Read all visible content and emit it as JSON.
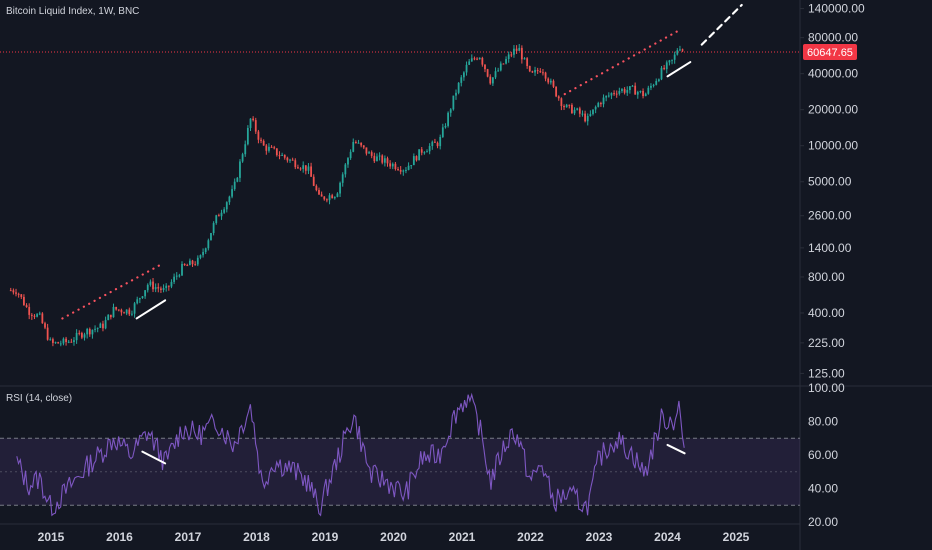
{
  "chart_data": [
    {
      "type": "candlestick",
      "title": "Bitcoin Liquid Index, 1W, BNC",
      "yscale": "log",
      "ylim": [
        100,
        150000
      ],
      "y_ticks": [
        "140000.00",
        "80000.00",
        "40000.00",
        "20000.00",
        "10000.00",
        "5000.00",
        "2600.00",
        "1400.00",
        "800.00",
        "400.00",
        "225.00",
        "125.00"
      ],
      "last_price": "60647.65",
      "last_price_color": "#f23645",
      "up_color": "#26a69a",
      "down_color": "#ef5350",
      "x_ticks": [
        "2015",
        "2016",
        "2017",
        "2018",
        "2019",
        "2020",
        "2021",
        "2022",
        "2023",
        "2024",
        "2025"
      ],
      "series": [
        {
          "date": "2014-07",
          "close": 620
        },
        {
          "date": "2014-09",
          "close": 420
        },
        {
          "date": "2014-11",
          "close": 370
        },
        {
          "date": "2015-01",
          "close": 220
        },
        {
          "date": "2015-04",
          "close": 230
        },
        {
          "date": "2015-07",
          "close": 280
        },
        {
          "date": "2015-10",
          "close": 310
        },
        {
          "date": "2015-12",
          "close": 430
        },
        {
          "date": "2016-03",
          "close": 415
        },
        {
          "date": "2016-06",
          "close": 700
        },
        {
          "date": "2016-09",
          "close": 610
        },
        {
          "date": "2016-12",
          "close": 960
        },
        {
          "date": "2017-03",
          "close": 1100
        },
        {
          "date": "2017-06",
          "close": 2500
        },
        {
          "date": "2017-09",
          "close": 4300
        },
        {
          "date": "2017-12",
          "close": 17000
        },
        {
          "date": "2018-02",
          "close": 10000
        },
        {
          "date": "2018-04",
          "close": 9000
        },
        {
          "date": "2018-07",
          "close": 7500
        },
        {
          "date": "2018-10",
          "close": 6400
        },
        {
          "date": "2018-12",
          "close": 3600
        },
        {
          "date": "2019-03",
          "close": 4000
        },
        {
          "date": "2019-06",
          "close": 11000
        },
        {
          "date": "2019-09",
          "close": 8300
        },
        {
          "date": "2019-12",
          "close": 7200
        },
        {
          "date": "2020-03",
          "close": 6400
        },
        {
          "date": "2020-06",
          "close": 9200
        },
        {
          "date": "2020-09",
          "close": 10700
        },
        {
          "date": "2020-12",
          "close": 29000
        },
        {
          "date": "2021-02",
          "close": 48000
        },
        {
          "date": "2021-04",
          "close": 58000
        },
        {
          "date": "2021-06",
          "close": 35000
        },
        {
          "date": "2021-08",
          "close": 47000
        },
        {
          "date": "2021-10",
          "close": 62000
        },
        {
          "date": "2021-11",
          "close": 64000
        },
        {
          "date": "2022-01",
          "close": 38000
        },
        {
          "date": "2022-03",
          "close": 45000
        },
        {
          "date": "2022-05",
          "close": 30000
        },
        {
          "date": "2022-07",
          "close": 21000
        },
        {
          "date": "2022-09",
          "close": 19500
        },
        {
          "date": "2022-11",
          "close": 16500
        },
        {
          "date": "2023-01",
          "close": 23000
        },
        {
          "date": "2023-04",
          "close": 29000
        },
        {
          "date": "2023-07",
          "close": 29500
        },
        {
          "date": "2023-09",
          "close": 26500
        },
        {
          "date": "2023-12",
          "close": 42000
        },
        {
          "date": "2024-02",
          "close": 52000
        },
        {
          "date": "2024-03",
          "close": 70000
        },
        {
          "date": "2024-04",
          "close": 60647
        }
      ],
      "price_line": 60647.65,
      "trendlines": [
        {
          "style": "dotted",
          "color": "#f7525f",
          "from": {
            "date": "2015-03",
            "price": 360
          },
          "to": {
            "date": "2016-08",
            "price": 1000
          }
        },
        {
          "style": "solid",
          "color": "#ffffff",
          "from": {
            "date": "2016-04",
            "price": 360
          },
          "to": {
            "date": "2016-09",
            "price": 510
          }
        },
        {
          "style": "dotted",
          "color": "#f7525f",
          "from": {
            "date": "2022-07",
            "price": 27000
          },
          "to": {
            "date": "2024-03",
            "price": 92000
          }
        },
        {
          "style": "solid",
          "color": "#ffffff",
          "from": {
            "date": "2024-01",
            "price": 38000
          },
          "to": {
            "date": "2024-05",
            "price": 50000
          }
        },
        {
          "style": "dashed",
          "color": "#ffffff",
          "from": {
            "date": "2024-07",
            "price": 70000
          },
          "to": {
            "date": "2025-02",
            "price": 150000
          }
        }
      ]
    },
    {
      "type": "line",
      "title": "RSI (14, close)",
      "line_color": "#7e57c2",
      "band": [
        30,
        70
      ],
      "ylim": [
        20,
        100
      ],
      "y_ticks": [
        "100.00",
        "80.00",
        "60.00",
        "40.00",
        "20.00"
      ],
      "series": [
        {
          "date": "2014-07",
          "rsi": 56
        },
        {
          "date": "2014-09",
          "rsi": 42
        },
        {
          "date": "2014-11",
          "rsi": 46
        },
        {
          "date": "2015-01",
          "rsi": 28
        },
        {
          "date": "2015-04",
          "rsi": 40
        },
        {
          "date": "2015-07",
          "rsi": 52
        },
        {
          "date": "2015-10",
          "rsi": 62
        },
        {
          "date": "2015-12",
          "rsi": 70
        },
        {
          "date": "2016-03",
          "rsi": 60
        },
        {
          "date": "2016-06",
          "rsi": 74
        },
        {
          "date": "2016-09",
          "rsi": 55
        },
        {
          "date": "2016-12",
          "rsi": 76
        },
        {
          "date": "2017-03",
          "rsi": 72
        },
        {
          "date": "2017-06",
          "rsi": 80
        },
        {
          "date": "2017-09",
          "rsi": 66
        },
        {
          "date": "2017-12",
          "rsi": 90
        },
        {
          "date": "2018-02",
          "rsi": 42
        },
        {
          "date": "2018-04",
          "rsi": 56
        },
        {
          "date": "2018-07",
          "rsi": 52
        },
        {
          "date": "2018-10",
          "rsi": 44
        },
        {
          "date": "2018-12",
          "rsi": 28
        },
        {
          "date": "2019-03",
          "rsi": 56
        },
        {
          "date": "2019-06",
          "rsi": 84
        },
        {
          "date": "2019-09",
          "rsi": 48
        },
        {
          "date": "2019-12",
          "rsi": 44
        },
        {
          "date": "2020-03",
          "rsi": 36
        },
        {
          "date": "2020-06",
          "rsi": 58
        },
        {
          "date": "2020-09",
          "rsi": 60
        },
        {
          "date": "2020-12",
          "rsi": 86
        },
        {
          "date": "2021-02",
          "rsi": 95
        },
        {
          "date": "2021-04",
          "rsi": 78
        },
        {
          "date": "2021-06",
          "rsi": 44
        },
        {
          "date": "2021-08",
          "rsi": 62
        },
        {
          "date": "2021-10",
          "rsi": 75
        },
        {
          "date": "2021-11",
          "rsi": 68
        },
        {
          "date": "2022-01",
          "rsi": 44
        },
        {
          "date": "2022-03",
          "rsi": 55
        },
        {
          "date": "2022-05",
          "rsi": 32
        },
        {
          "date": "2022-07",
          "rsi": 36
        },
        {
          "date": "2022-09",
          "rsi": 34
        },
        {
          "date": "2022-11",
          "rsi": 28
        },
        {
          "date": "2023-01",
          "rsi": 58
        },
        {
          "date": "2023-04",
          "rsi": 70
        },
        {
          "date": "2023-07",
          "rsi": 60
        },
        {
          "date": "2023-09",
          "rsi": 48
        },
        {
          "date": "2023-12",
          "rsi": 82
        },
        {
          "date": "2024-02",
          "rsi": 80
        },
        {
          "date": "2024-03",
          "rsi": 89
        },
        {
          "date": "2024-04",
          "rsi": 61
        }
      ],
      "trendlines": [
        {
          "style": "solid",
          "color": "#ffffff",
          "from": {
            "date": "2016-05",
            "rsi": 62
          },
          "to": {
            "date": "2016-09",
            "rsi": 55
          }
        },
        {
          "style": "solid",
          "color": "#ffffff",
          "from": {
            "date": "2024-01",
            "rsi": 66
          },
          "to": {
            "date": "2024-04",
            "rsi": 61
          }
        }
      ]
    }
  ]
}
